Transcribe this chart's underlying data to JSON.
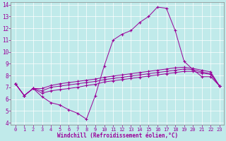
{
  "xlabel": "Windchill (Refroidissement éolien,°C)",
  "xlim": [
    -0.5,
    23.5
  ],
  "ylim": [
    3.8,
    14.2
  ],
  "yticks": [
    4,
    5,
    6,
    7,
    8,
    9,
    10,
    11,
    12,
    13,
    14
  ],
  "xticks": [
    0,
    1,
    2,
    3,
    4,
    5,
    6,
    7,
    8,
    9,
    10,
    11,
    12,
    13,
    14,
    15,
    16,
    17,
    18,
    19,
    20,
    21,
    22,
    23
  ],
  "bg_color": "#c0eaea",
  "line_color": "#990099",
  "grid_color": "#ffffff",
  "line1_x": [
    0,
    1,
    2,
    3,
    4,
    5,
    6,
    7,
    8,
    9,
    10,
    11,
    12,
    13,
    14,
    15,
    16,
    17,
    18,
    19,
    20,
    21,
    22,
    23
  ],
  "line1_y": [
    7.3,
    6.3,
    6.9,
    6.2,
    5.7,
    5.5,
    5.1,
    4.8,
    4.3,
    6.3,
    8.8,
    11.0,
    11.5,
    11.8,
    12.5,
    13.0,
    13.8,
    13.7,
    11.8,
    9.2,
    8.5,
    7.9,
    7.9,
    7.1
  ],
  "line2_x": [
    0,
    1,
    2,
    3,
    4,
    5,
    6,
    7,
    8,
    9,
    10,
    11,
    12,
    13,
    14,
    15,
    16,
    17,
    18,
    19,
    20,
    21,
    22,
    23
  ],
  "line2_y": [
    7.3,
    6.3,
    6.9,
    6.5,
    6.7,
    6.8,
    6.9,
    7.0,
    7.15,
    7.25,
    7.45,
    7.55,
    7.65,
    7.75,
    7.85,
    7.95,
    8.05,
    8.15,
    8.25,
    8.35,
    8.35,
    8.2,
    8.1,
    7.1
  ],
  "line3_x": [
    0,
    1,
    2,
    3,
    4,
    5,
    6,
    7,
    8,
    9,
    10,
    11,
    12,
    13,
    14,
    15,
    16,
    17,
    18,
    19,
    20,
    21,
    22,
    23
  ],
  "line3_y": [
    7.3,
    6.3,
    6.9,
    6.7,
    7.0,
    7.1,
    7.2,
    7.3,
    7.4,
    7.5,
    7.65,
    7.75,
    7.85,
    7.95,
    8.05,
    8.15,
    8.25,
    8.35,
    8.45,
    8.55,
    8.5,
    8.3,
    8.15,
    7.1
  ],
  "line4_x": [
    0,
    1,
    2,
    3,
    4,
    5,
    6,
    7,
    8,
    9,
    10,
    11,
    12,
    13,
    14,
    15,
    16,
    17,
    18,
    19,
    20,
    21,
    22,
    23
  ],
  "line4_y": [
    7.3,
    6.3,
    6.9,
    6.9,
    7.15,
    7.3,
    7.4,
    7.5,
    7.6,
    7.7,
    7.85,
    7.95,
    8.05,
    8.15,
    8.25,
    8.35,
    8.45,
    8.55,
    8.65,
    8.7,
    8.6,
    8.45,
    8.3,
    7.1
  ]
}
